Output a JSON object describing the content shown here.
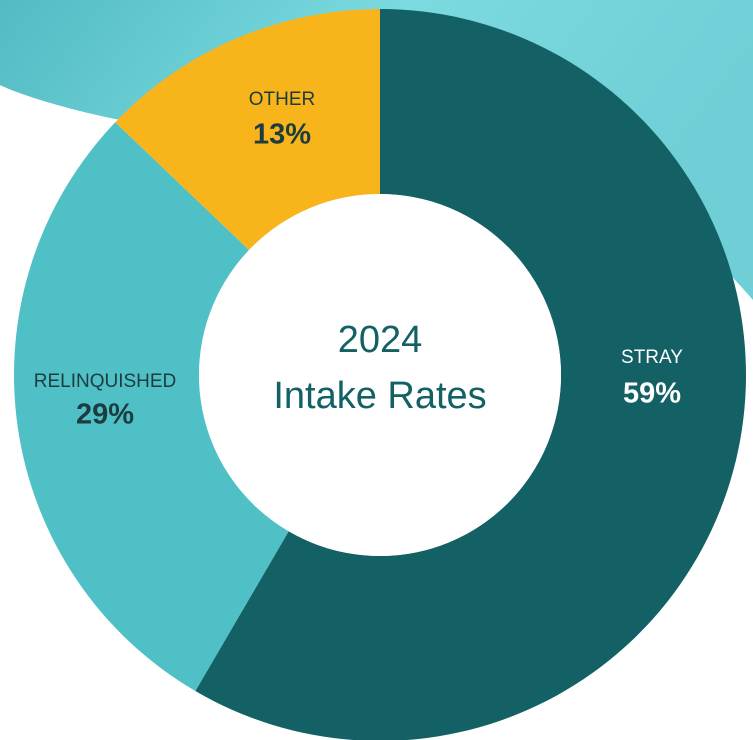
{
  "chart_data": {
    "type": "donut",
    "title": [
      "2024",
      "Intake Rates"
    ],
    "categories": [
      "STRAY",
      "RELINQUISHED",
      "OTHER"
    ],
    "values": [
      59,
      29,
      13
    ],
    "value_labels": [
      "59%",
      "29%",
      "13%"
    ],
    "colors": [
      "#136165",
      "#4fc0c5",
      "#f8b41b"
    ]
  }
}
